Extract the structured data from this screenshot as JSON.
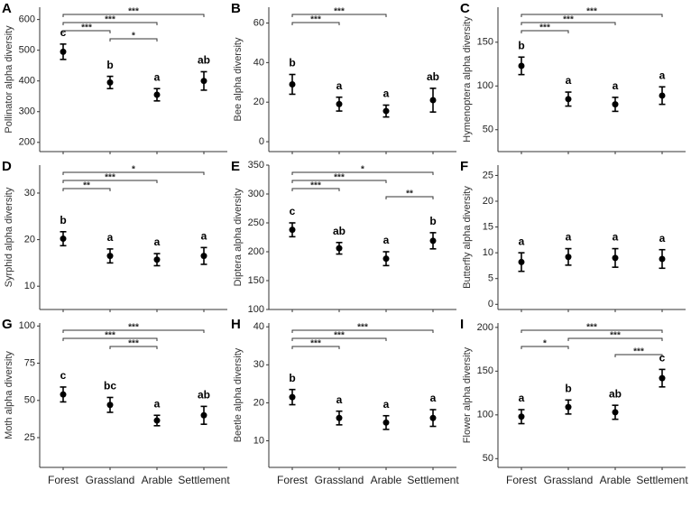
{
  "chart_data": [
    {
      "type": "errorbar",
      "panel": "A",
      "y_label": "Pollinator alpha diversity",
      "categories": [
        "Forest",
        "Grassland",
        "Arable",
        "Settlement"
      ],
      "values": [
        495,
        395,
        355,
        400
      ],
      "errors": [
        25,
        20,
        20,
        30
      ],
      "letters": [
        "c",
        "b",
        "a",
        "ab"
      ],
      "ylim": [
        170,
        640
      ],
      "yticks": [
        200,
        300,
        400,
        500,
        600
      ],
      "comparisons": [
        {
          "between": [
            "Forest",
            "Settlement"
          ],
          "label": "***"
        },
        {
          "between": [
            "Forest",
            "Arable"
          ],
          "label": "***"
        },
        {
          "between": [
            "Forest",
            "Grassland"
          ],
          "label": "***"
        },
        {
          "between": [
            "Grassland",
            "Arable"
          ],
          "label": "*"
        }
      ]
    },
    {
      "type": "errorbar",
      "panel": "B",
      "y_label": "Bee alpha diversity",
      "categories": [
        "Forest",
        "Grassland",
        "Arable",
        "Settlement"
      ],
      "values": [
        29,
        19,
        15.5,
        21
      ],
      "errors": [
        5,
        3.5,
        3,
        6
      ],
      "letters": [
        "b",
        "a",
        "a",
        "ab"
      ],
      "ylim": [
        -5,
        68
      ],
      "yticks": [
        0,
        20,
        40,
        60
      ],
      "comparisons": [
        {
          "between": [
            "Forest",
            "Arable"
          ],
          "label": "***"
        },
        {
          "between": [
            "Forest",
            "Grassland"
          ],
          "label": "***"
        }
      ]
    },
    {
      "type": "errorbar",
      "panel": "C",
      "y_label": "Hymenoptera alpha diversity",
      "categories": [
        "Forest",
        "Grassland",
        "Arable",
        "Settlement"
      ],
      "values": [
        123,
        85,
        79,
        89
      ],
      "errors": [
        10,
        8,
        8,
        10
      ],
      "letters": [
        "b",
        "a",
        "a",
        "a"
      ],
      "ylim": [
        25,
        190
      ],
      "yticks": [
        50,
        100,
        150
      ],
      "comparisons": [
        {
          "between": [
            "Forest",
            "Settlement"
          ],
          "label": "***"
        },
        {
          "between": [
            "Forest",
            "Arable"
          ],
          "label": "***"
        },
        {
          "between": [
            "Forest",
            "Grassland"
          ],
          "label": "***"
        }
      ]
    },
    {
      "type": "errorbar",
      "panel": "D",
      "y_label": "Syrphid alpha diversity",
      "categories": [
        "Forest",
        "Grassland",
        "Arable",
        "Settlement"
      ],
      "values": [
        20.2,
        16.5,
        15.7,
        16.5
      ],
      "errors": [
        1.5,
        1.5,
        1.3,
        1.8
      ],
      "letters": [
        "b",
        "a",
        "a",
        "a"
      ],
      "ylim": [
        5,
        36
      ],
      "yticks": [
        10,
        20,
        30
      ],
      "comparisons": [
        {
          "between": [
            "Forest",
            "Settlement"
          ],
          "label": "*"
        },
        {
          "between": [
            "Forest",
            "Arable"
          ],
          "label": "***"
        },
        {
          "between": [
            "Forest",
            "Grassland"
          ],
          "label": "**"
        }
      ]
    },
    {
      "type": "errorbar",
      "panel": "E",
      "y_label": "Diptera alpha diversity",
      "categories": [
        "Forest",
        "Grassland",
        "Arable",
        "Settlement"
      ],
      "values": [
        238,
        206,
        188,
        219
      ],
      "errors": [
        12,
        10,
        12,
        14
      ],
      "letters": [
        "c",
        "ab",
        "a",
        "b"
      ],
      "ylim": [
        100,
        350
      ],
      "yticks": [
        100,
        150,
        200,
        250,
        300,
        350
      ],
      "comparisons": [
        {
          "between": [
            "Forest",
            "Settlement"
          ],
          "label": "*"
        },
        {
          "between": [
            "Forest",
            "Arable"
          ],
          "label": "***"
        },
        {
          "between": [
            "Forest",
            "Grassland"
          ],
          "label": "***"
        },
        {
          "between": [
            "Arable",
            "Settlement"
          ],
          "label": "**"
        }
      ]
    },
    {
      "type": "errorbar",
      "panel": "F",
      "y_label": "Butterfly alpha diversity",
      "categories": [
        "Forest",
        "Grassland",
        "Arable",
        "Settlement"
      ],
      "values": [
        8.2,
        9.2,
        9,
        8.8
      ],
      "errors": [
        1.8,
        1.6,
        1.8,
        1.8
      ],
      "letters": [
        "a",
        "a",
        "a",
        "a"
      ],
      "ylim": [
        -1,
        27
      ],
      "yticks": [
        0,
        5,
        10,
        15,
        20,
        25
      ],
      "comparisons": []
    },
    {
      "type": "errorbar",
      "panel": "G",
      "y_label": "Moth alpha diversity",
      "categories": [
        "Forest",
        "Grassland",
        "Arable",
        "Settlement"
      ],
      "values": [
        54,
        47,
        36.5,
        40
      ],
      "errors": [
        5,
        5,
        3.5,
        6
      ],
      "letters": [
        "c",
        "bc",
        "a",
        "ab"
      ],
      "ylim": [
        5,
        102
      ],
      "yticks": [
        25,
        50,
        75,
        100
      ],
      "comparisons": [
        {
          "between": [
            "Forest",
            "Settlement"
          ],
          "label": "***"
        },
        {
          "between": [
            "Forest",
            "Arable"
          ],
          "label": "***"
        },
        {
          "between": [
            "Grassland",
            "Arable"
          ],
          "label": "***"
        }
      ]
    },
    {
      "type": "errorbar",
      "panel": "H",
      "y_label": "Beetle alpha diversity",
      "categories": [
        "Forest",
        "Grassland",
        "Arable",
        "Settlement"
      ],
      "values": [
        21.5,
        16,
        14.8,
        16
      ],
      "errors": [
        2,
        1.8,
        1.8,
        2.2
      ],
      "letters": [
        "b",
        "a",
        "a",
        "a"
      ],
      "ylim": [
        3,
        41
      ],
      "yticks": [
        10,
        20,
        30,
        40
      ],
      "comparisons": [
        {
          "between": [
            "Forest",
            "Settlement"
          ],
          "label": "***"
        },
        {
          "between": [
            "Forest",
            "Arable"
          ],
          "label": "***"
        },
        {
          "between": [
            "Forest",
            "Grassland"
          ],
          "label": "***"
        }
      ]
    },
    {
      "type": "errorbar",
      "panel": "I",
      "y_label": "Flower alpha diversity",
      "categories": [
        "Forest",
        "Grassland",
        "Arable",
        "Settlement"
      ],
      "values": [
        98,
        109,
        103,
        142
      ],
      "errors": [
        8,
        8,
        8,
        10
      ],
      "letters": [
        "a",
        "b",
        "ab",
        "c"
      ],
      "ylim": [
        40,
        205
      ],
      "yticks": [
        50,
        100,
        150,
        200
      ],
      "comparisons": [
        {
          "between": [
            "Forest",
            "Settlement"
          ],
          "label": "***"
        },
        {
          "between": [
            "Grassland",
            "Settlement"
          ],
          "label": "***"
        },
        {
          "between": [
            "Forest",
            "Grassland"
          ],
          "label": "*"
        },
        {
          "between": [
            "Arable",
            "Settlement"
          ],
          "label": "***"
        }
      ]
    }
  ]
}
